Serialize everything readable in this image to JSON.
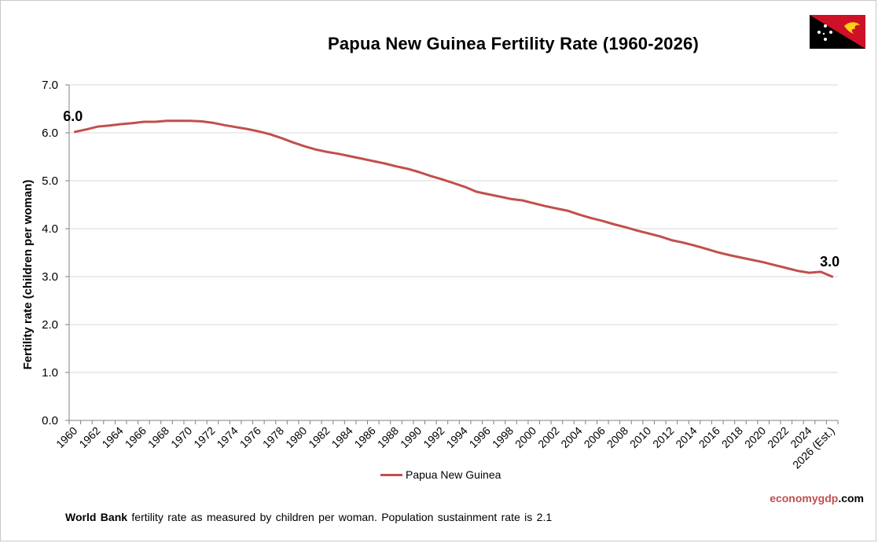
{
  "title": "Papua New Guinea Fertility Rate (1960-2026)",
  "legend_label": "Papua New Guinea",
  "brand": {
    "part1": "economy",
    "part2": "gdp",
    "part3": ".com"
  },
  "footnote": {
    "bold": "World Bank",
    "text": " fertility rate as measured by children per woman.  Population sustainment rate is 2.1"
  },
  "flag_icon": "papua-new-guinea-flag-icon",
  "colors": {
    "line": "#c0504d",
    "grid": "#d9d9d9",
    "axis": "#808080",
    "brand_red": "#c0504d"
  },
  "chart_data": {
    "type": "line",
    "title": "Papua New Guinea Fertility Rate (1960-2026)",
    "ylabel": "Fertility rate (children per woman)",
    "xlabel": "",
    "ylim": [
      0,
      7
    ],
    "yticks": [
      "0.0",
      "1.0",
      "2.0",
      "3.0",
      "4.0",
      "5.0",
      "6.0",
      "7.0"
    ],
    "grid": true,
    "legend_position": "bottom",
    "x_tick_labels": [
      "1960",
      "1962",
      "1964",
      "1966",
      "1968",
      "1970",
      "1972",
      "1974",
      "1976",
      "1978",
      "1980",
      "1982",
      "1984",
      "1986",
      "1988",
      "1990",
      "1992",
      "1994",
      "1996",
      "1998",
      "2000",
      "2002",
      "2004",
      "2006",
      "2008",
      "2010",
      "2012",
      "2014",
      "2016",
      "2018",
      "2020",
      "2022",
      "2024",
      "2026 (Est.)"
    ],
    "x": [
      1960,
      1961,
      1962,
      1963,
      1964,
      1965,
      1966,
      1967,
      1968,
      1969,
      1970,
      1971,
      1972,
      1973,
      1974,
      1975,
      1976,
      1977,
      1978,
      1979,
      1980,
      1981,
      1982,
      1983,
      1984,
      1985,
      1986,
      1987,
      1988,
      1989,
      1990,
      1991,
      1992,
      1993,
      1994,
      1995,
      1996,
      1997,
      1998,
      1999,
      2000,
      2001,
      2002,
      2003,
      2004,
      2005,
      2006,
      2007,
      2008,
      2009,
      2010,
      2011,
      2012,
      2013,
      2014,
      2015,
      2016,
      2017,
      2018,
      2019,
      2020,
      2021,
      2022,
      2023,
      2024,
      2025,
      2026
    ],
    "series": [
      {
        "name": "Papua New Guinea",
        "values": [
          6.02,
          6.07,
          6.13,
          6.15,
          6.18,
          6.2,
          6.23,
          6.23,
          6.25,
          6.25,
          6.25,
          6.24,
          6.21,
          6.16,
          6.12,
          6.08,
          6.03,
          5.97,
          5.89,
          5.8,
          5.72,
          5.65,
          5.6,
          5.56,
          5.51,
          5.46,
          5.41,
          5.36,
          5.3,
          5.25,
          5.18,
          5.1,
          5.03,
          4.95,
          4.87,
          4.77,
          4.72,
          4.67,
          4.62,
          4.59,
          4.53,
          4.47,
          4.42,
          4.37,
          4.29,
          4.22,
          4.16,
          4.09,
          4.03,
          3.96,
          3.9,
          3.84,
          3.76,
          3.71,
          3.65,
          3.58,
          3.51,
          3.45,
          3.4,
          3.35,
          3.3,
          3.24,
          3.18,
          3.12,
          3.08,
          3.1,
          3.0
        ]
      }
    ],
    "annotations": [
      {
        "x": 1960,
        "label": "6.0"
      },
      {
        "x": 2026,
        "label": "3.0"
      }
    ]
  }
}
